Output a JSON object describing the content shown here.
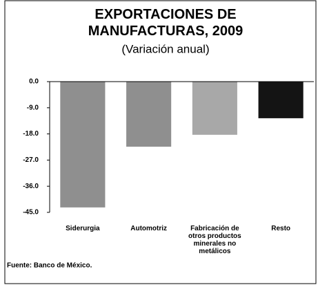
{
  "chart_data": {
    "type": "bar",
    "title": "EXPORTACIONES DE MANUFACTURAS, 2009",
    "subtitle": "(Variación anual)",
    "categories": [
      "Siderurgia",
      "Automotriz",
      "Fabricación de otros productos minerales no metálicos",
      "Resto"
    ],
    "values": [
      -43.3,
      -22.4,
      -18.3,
      -12.6
    ],
    "colors": [
      "#8f8f8f",
      "#8f8f8f",
      "#a8a8a8",
      "#141414"
    ],
    "ylim": [
      -45,
      0
    ],
    "yticks": [
      {
        "value": 0,
        "label": "0.0"
      },
      {
        "value": -9,
        "label": "-9.0"
      },
      {
        "value": -18,
        "label": "-18.0"
      },
      {
        "value": -27,
        "label": "-27.0"
      },
      {
        "value": -36,
        "label": "-36.0"
      },
      {
        "value": -45,
        "label": "-45.0"
      }
    ],
    "grid": false,
    "source": "Fuente: Banco de México."
  }
}
